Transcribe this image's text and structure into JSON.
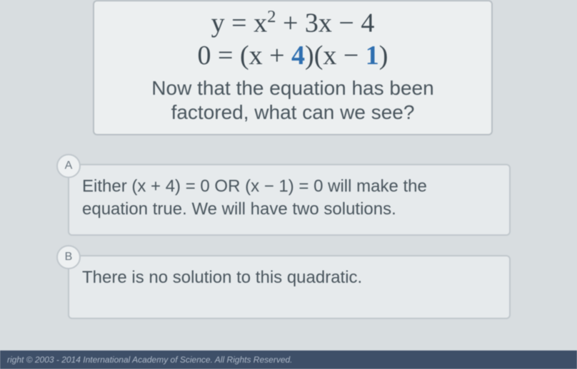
{
  "question": {
    "equation1_html": "y = x<sup>2</sup> + 3x − 4",
    "equation2_html": "0 = (x + <span class='hl'>4</span>)(x − <span class='hl'>1</span>)",
    "prompt_line1": "Now that the equation has been",
    "prompt_line2": "factored, what can we see?"
  },
  "answers": {
    "a": {
      "letter": "A",
      "text": "Either (x + 4) = 0 OR (x − 1) = 0 will make the equation true. We will have two solutions."
    },
    "b": {
      "letter": "B",
      "text": "There is no solution to this quadratic."
    }
  },
  "footer": {
    "text": "right © 2003 - 2014 International Academy of Science. All Rights Reserved."
  },
  "colors": {
    "page_bg": "#d8dde0",
    "card_bg": "#eceff0",
    "card_border": "#b8bfc4",
    "answer_bg": "#e6eaec",
    "answer_border": "#c0c7cc",
    "text": "#4a565e",
    "highlight": "#2f6fb0",
    "footer_bg": "#3e4f68",
    "footer_text": "#aeb9c8"
  }
}
